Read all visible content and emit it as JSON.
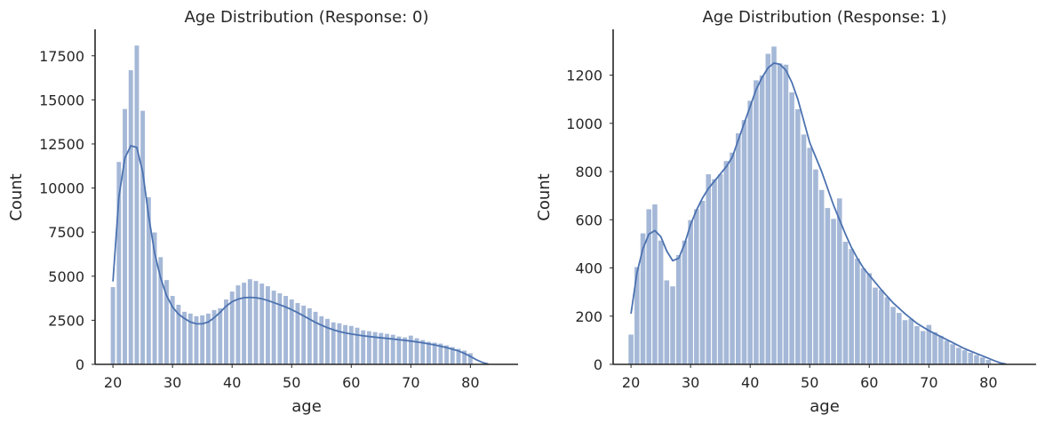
{
  "chart_data": [
    {
      "type": "histogram",
      "title": "Age Distribution (Response: 0)",
      "xlabel": "age",
      "ylabel": "Count",
      "xlim": [
        17,
        88
      ],
      "ylim": [
        0,
        19000
      ],
      "xticks": [
        20,
        30,
        40,
        50,
        60,
        70,
        80
      ],
      "yticks": [
        0,
        2500,
        5000,
        7500,
        10000,
        12500,
        15000,
        17500
      ],
      "bin_width": 0.85,
      "bars": [
        {
          "x": 20,
          "y": 4400
        },
        {
          "x": 21,
          "y": 11500
        },
        {
          "x": 22,
          "y": 14500
        },
        {
          "x": 23,
          "y": 16700
        },
        {
          "x": 24,
          "y": 18100
        },
        {
          "x": 25,
          "y": 14400
        },
        {
          "x": 26,
          "y": 9500
        },
        {
          "x": 27,
          "y": 7500
        },
        {
          "x": 28,
          "y": 6100
        },
        {
          "x": 29,
          "y": 4800
        },
        {
          "x": 30,
          "y": 3900
        },
        {
          "x": 31,
          "y": 3400
        },
        {
          "x": 32,
          "y": 3000
        },
        {
          "x": 33,
          "y": 2900
        },
        {
          "x": 34,
          "y": 2750
        },
        {
          "x": 35,
          "y": 2800
        },
        {
          "x": 36,
          "y": 2900
        },
        {
          "x": 37,
          "y": 3100
        },
        {
          "x": 38,
          "y": 3200
        },
        {
          "x": 39,
          "y": 3700
        },
        {
          "x": 40,
          "y": 4150
        },
        {
          "x": 41,
          "y": 4500
        },
        {
          "x": 42,
          "y": 4650
        },
        {
          "x": 43,
          "y": 4850
        },
        {
          "x": 44,
          "y": 4750
        },
        {
          "x": 45,
          "y": 4600
        },
        {
          "x": 46,
          "y": 4450
        },
        {
          "x": 47,
          "y": 4200
        },
        {
          "x": 48,
          "y": 4050
        },
        {
          "x": 49,
          "y": 3900
        },
        {
          "x": 50,
          "y": 3700
        },
        {
          "x": 51,
          "y": 3500
        },
        {
          "x": 52,
          "y": 3350
        },
        {
          "x": 53,
          "y": 3200
        },
        {
          "x": 54,
          "y": 3000
        },
        {
          "x": 55,
          "y": 2750
        },
        {
          "x": 56,
          "y": 2600
        },
        {
          "x": 57,
          "y": 2400
        },
        {
          "x": 58,
          "y": 2350
        },
        {
          "x": 59,
          "y": 2250
        },
        {
          "x": 60,
          "y": 2200
        },
        {
          "x": 61,
          "y": 2100
        },
        {
          "x": 62,
          "y": 1950
        },
        {
          "x": 63,
          "y": 1900
        },
        {
          "x": 64,
          "y": 1850
        },
        {
          "x": 65,
          "y": 1800
        },
        {
          "x": 66,
          "y": 1750
        },
        {
          "x": 67,
          "y": 1700
        },
        {
          "x": 68,
          "y": 1600
        },
        {
          "x": 69,
          "y": 1550
        },
        {
          "x": 70,
          "y": 1650
        },
        {
          "x": 71,
          "y": 1500
        },
        {
          "x": 72,
          "y": 1400
        },
        {
          "x": 73,
          "y": 1300
        },
        {
          "x": 74,
          "y": 1250
        },
        {
          "x": 75,
          "y": 1200
        },
        {
          "x": 76,
          "y": 1100
        },
        {
          "x": 77,
          "y": 1000
        },
        {
          "x": 78,
          "y": 900
        },
        {
          "x": 79,
          "y": 800
        },
        {
          "x": 80,
          "y": 650
        }
      ],
      "kde": [
        [
          20,
          4700
        ],
        [
          21,
          9500
        ],
        [
          22,
          11700
        ],
        [
          23,
          12400
        ],
        [
          24,
          12300
        ],
        [
          25,
          10900
        ],
        [
          26,
          8400
        ],
        [
          27,
          6300
        ],
        [
          28,
          4900
        ],
        [
          29,
          3900
        ],
        [
          30,
          3250
        ],
        [
          31,
          2850
        ],
        [
          32,
          2600
        ],
        [
          33,
          2400
        ],
        [
          34,
          2300
        ],
        [
          35,
          2300
        ],
        [
          36,
          2400
        ],
        [
          37,
          2650
        ],
        [
          38,
          2950
        ],
        [
          39,
          3300
        ],
        [
          40,
          3550
        ],
        [
          41,
          3700
        ],
        [
          42,
          3780
        ],
        [
          43,
          3800
        ],
        [
          44,
          3780
        ],
        [
          45,
          3720
        ],
        [
          46,
          3620
        ],
        [
          47,
          3500
        ],
        [
          48,
          3380
        ],
        [
          49,
          3250
        ],
        [
          50,
          3100
        ],
        [
          51,
          2930
        ],
        [
          52,
          2750
        ],
        [
          53,
          2560
        ],
        [
          54,
          2380
        ],
        [
          55,
          2220
        ],
        [
          56,
          2080
        ],
        [
          57,
          1960
        ],
        [
          58,
          1860
        ],
        [
          59,
          1780
        ],
        [
          60,
          1720
        ],
        [
          62,
          1620
        ],
        [
          64,
          1540
        ],
        [
          66,
          1470
        ],
        [
          68,
          1400
        ],
        [
          70,
          1320
        ],
        [
          72,
          1220
        ],
        [
          74,
          1100
        ],
        [
          76,
          950
        ],
        [
          78,
          760
        ],
        [
          79,
          620
        ],
        [
          80,
          450
        ],
        [
          81,
          260
        ],
        [
          82,
          110
        ],
        [
          83,
          20
        ]
      ]
    },
    {
      "type": "histogram",
      "title": "Age Distribution (Response: 1)",
      "xlabel": "age",
      "ylabel": "Count",
      "xlim": [
        17,
        88
      ],
      "ylim": [
        0,
        1390
      ],
      "xticks": [
        20,
        30,
        40,
        50,
        60,
        70,
        80
      ],
      "yticks": [
        0,
        200,
        400,
        600,
        800,
        1000,
        1200
      ],
      "bin_width": 0.95,
      "bars": [
        {
          "x": 20,
          "y": 125
        },
        {
          "x": 21,
          "y": 405
        },
        {
          "x": 22,
          "y": 545
        },
        {
          "x": 23,
          "y": 645
        },
        {
          "x": 24,
          "y": 665
        },
        {
          "x": 25,
          "y": 515
        },
        {
          "x": 26,
          "y": 350
        },
        {
          "x": 27,
          "y": 325
        },
        {
          "x": 28,
          "y": 455
        },
        {
          "x": 29,
          "y": 515
        },
        {
          "x": 30,
          "y": 600
        },
        {
          "x": 31,
          "y": 645
        },
        {
          "x": 32,
          "y": 680
        },
        {
          "x": 33,
          "y": 790
        },
        {
          "x": 34,
          "y": 770
        },
        {
          "x": 35,
          "y": 790
        },
        {
          "x": 36,
          "y": 845
        },
        {
          "x": 37,
          "y": 880
        },
        {
          "x": 38,
          "y": 960
        },
        {
          "x": 39,
          "y": 1015
        },
        {
          "x": 40,
          "y": 1095
        },
        {
          "x": 41,
          "y": 1180
        },
        {
          "x": 42,
          "y": 1200
        },
        {
          "x": 43,
          "y": 1290
        },
        {
          "x": 44,
          "y": 1320
        },
        {
          "x": 45,
          "y": 1250
        },
        {
          "x": 46,
          "y": 1245
        },
        {
          "x": 47,
          "y": 1130
        },
        {
          "x": 48,
          "y": 1060
        },
        {
          "x": 49,
          "y": 955
        },
        {
          "x": 50,
          "y": 900
        },
        {
          "x": 51,
          "y": 810
        },
        {
          "x": 52,
          "y": 725
        },
        {
          "x": 53,
          "y": 650
        },
        {
          "x": 54,
          "y": 605
        },
        {
          "x": 55,
          "y": 690
        },
        {
          "x": 56,
          "y": 510
        },
        {
          "x": 57,
          "y": 480
        },
        {
          "x": 58,
          "y": 440
        },
        {
          "x": 59,
          "y": 400
        },
        {
          "x": 60,
          "y": 380
        },
        {
          "x": 61,
          "y": 320
        },
        {
          "x": 62,
          "y": 310
        },
        {
          "x": 63,
          "y": 280
        },
        {
          "x": 64,
          "y": 240
        },
        {
          "x": 65,
          "y": 215
        },
        {
          "x": 66,
          "y": 185
        },
        {
          "x": 67,
          "y": 190
        },
        {
          "x": 68,
          "y": 160
        },
        {
          "x": 69,
          "y": 140
        },
        {
          "x": 70,
          "y": 165
        },
        {
          "x": 71,
          "y": 135
        },
        {
          "x": 72,
          "y": 120
        },
        {
          "x": 73,
          "y": 100
        },
        {
          "x": 74,
          "y": 85
        },
        {
          "x": 75,
          "y": 70
        },
        {
          "x": 76,
          "y": 60
        },
        {
          "x": 77,
          "y": 50
        },
        {
          "x": 78,
          "y": 40
        },
        {
          "x": 79,
          "y": 30
        },
        {
          "x": 80,
          "y": 20
        }
      ],
      "kde": [
        [
          20,
          210
        ],
        [
          21,
          380
        ],
        [
          22,
          480
        ],
        [
          23,
          540
        ],
        [
          24,
          555
        ],
        [
          25,
          530
        ],
        [
          26,
          470
        ],
        [
          27,
          430
        ],
        [
          28,
          440
        ],
        [
          29,
          500
        ],
        [
          30,
          580
        ],
        [
          31,
          640
        ],
        [
          32,
          690
        ],
        [
          33,
          730
        ],
        [
          34,
          760
        ],
        [
          35,
          790
        ],
        [
          36,
          820
        ],
        [
          37,
          860
        ],
        [
          38,
          930
        ],
        [
          39,
          1000
        ],
        [
          40,
          1070
        ],
        [
          41,
          1140
        ],
        [
          42,
          1190
        ],
        [
          43,
          1230
        ],
        [
          44,
          1250
        ],
        [
          45,
          1245
        ],
        [
          46,
          1220
        ],
        [
          47,
          1170
        ],
        [
          48,
          1100
        ],
        [
          49,
          1010
        ],
        [
          50,
          920
        ],
        [
          51,
          860
        ],
        [
          52,
          800
        ],
        [
          53,
          730
        ],
        [
          54,
          660
        ],
        [
          55,
          600
        ],
        [
          56,
          540
        ],
        [
          57,
          485
        ],
        [
          58,
          440
        ],
        [
          59,
          400
        ],
        [
          60,
          370
        ],
        [
          62,
          310
        ],
        [
          64,
          255
        ],
        [
          66,
          210
        ],
        [
          68,
          170
        ],
        [
          70,
          140
        ],
        [
          72,
          115
        ],
        [
          74,
          90
        ],
        [
          76,
          65
        ],
        [
          78,
          45
        ],
        [
          80,
          25
        ],
        [
          81,
          15
        ],
        [
          82,
          6
        ],
        [
          83,
          1
        ]
      ]
    }
  ]
}
